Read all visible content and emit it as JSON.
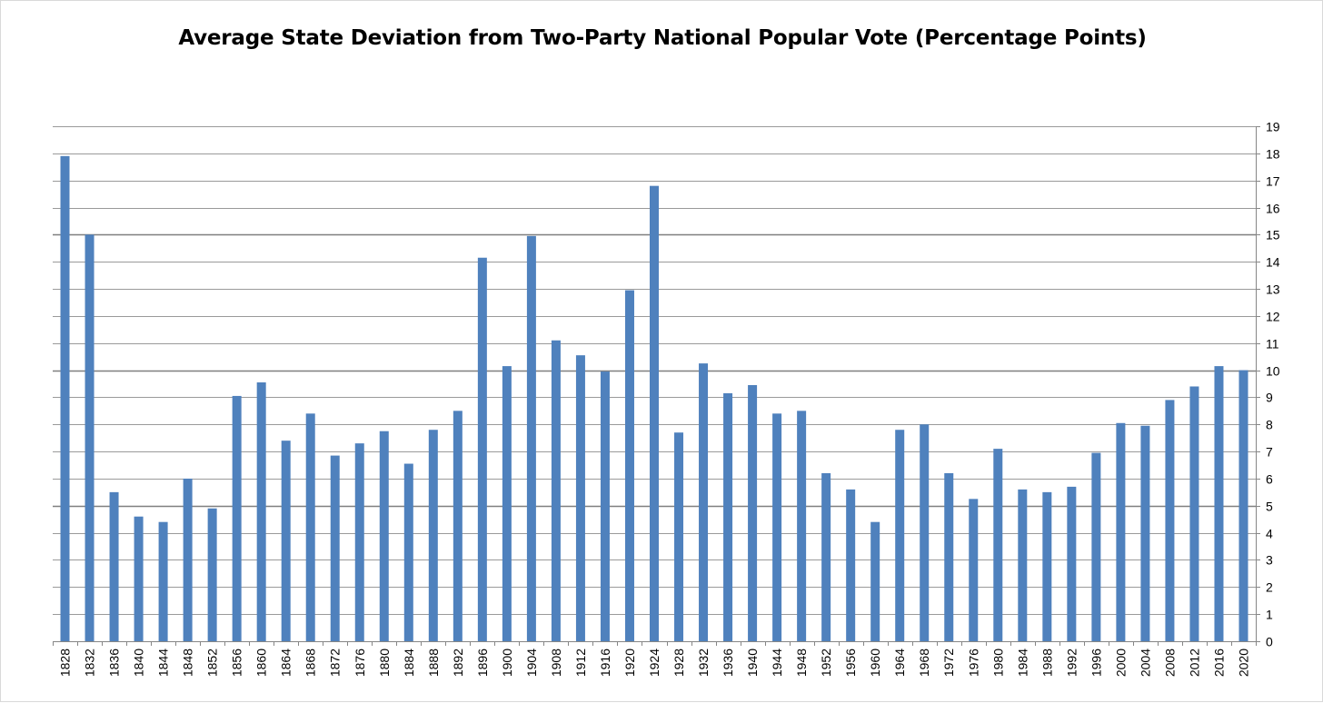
{
  "chart_data": {
    "type": "bar",
    "title": "Average State Deviation from Two-Party National Popular Vote (Percentage Points)",
    "xlabel": "",
    "ylabel": "",
    "ylim": [
      0,
      19
    ],
    "yticks": [
      0,
      1,
      2,
      3,
      4,
      5,
      6,
      7,
      8,
      9,
      10,
      11,
      12,
      13,
      14,
      15,
      16,
      17,
      18,
      19
    ],
    "y_axis_side": "right",
    "grid": true,
    "legend": "none",
    "bar_color": "#4f81bd",
    "categories": [
      "1828",
      "1832",
      "1836",
      "1840",
      "1844",
      "1848",
      "1852",
      "1856",
      "1860",
      "1864",
      "1868",
      "1872",
      "1876",
      "1880",
      "1884",
      "1888",
      "1892",
      "1896",
      "1900",
      "1904",
      "1908",
      "1912",
      "1916",
      "1920",
      "1924",
      "1928",
      "1932",
      "1936",
      "1940",
      "1944",
      "1948",
      "1952",
      "1956",
      "1960",
      "1964",
      "1968",
      "1972",
      "1976",
      "1980",
      "1984",
      "1988",
      "1992",
      "1996",
      "2000",
      "2004",
      "2008",
      "2012",
      "2016",
      "2020"
    ],
    "values": [
      17.9,
      15.0,
      5.5,
      4.6,
      4.4,
      6.0,
      4.9,
      9.05,
      9.55,
      7.4,
      8.4,
      6.85,
      7.3,
      7.75,
      6.55,
      7.8,
      8.5,
      14.15,
      10.15,
      14.95,
      11.1,
      10.55,
      9.95,
      12.95,
      16.8,
      7.7,
      10.25,
      9.15,
      9.45,
      8.4,
      8.5,
      6.2,
      5.6,
      4.4,
      7.8,
      8.0,
      6.2,
      5.25,
      7.1,
      5.6,
      5.5,
      5.7,
      6.95,
      8.05,
      7.95,
      8.9,
      9.4,
      10.15,
      10.0
    ]
  }
}
